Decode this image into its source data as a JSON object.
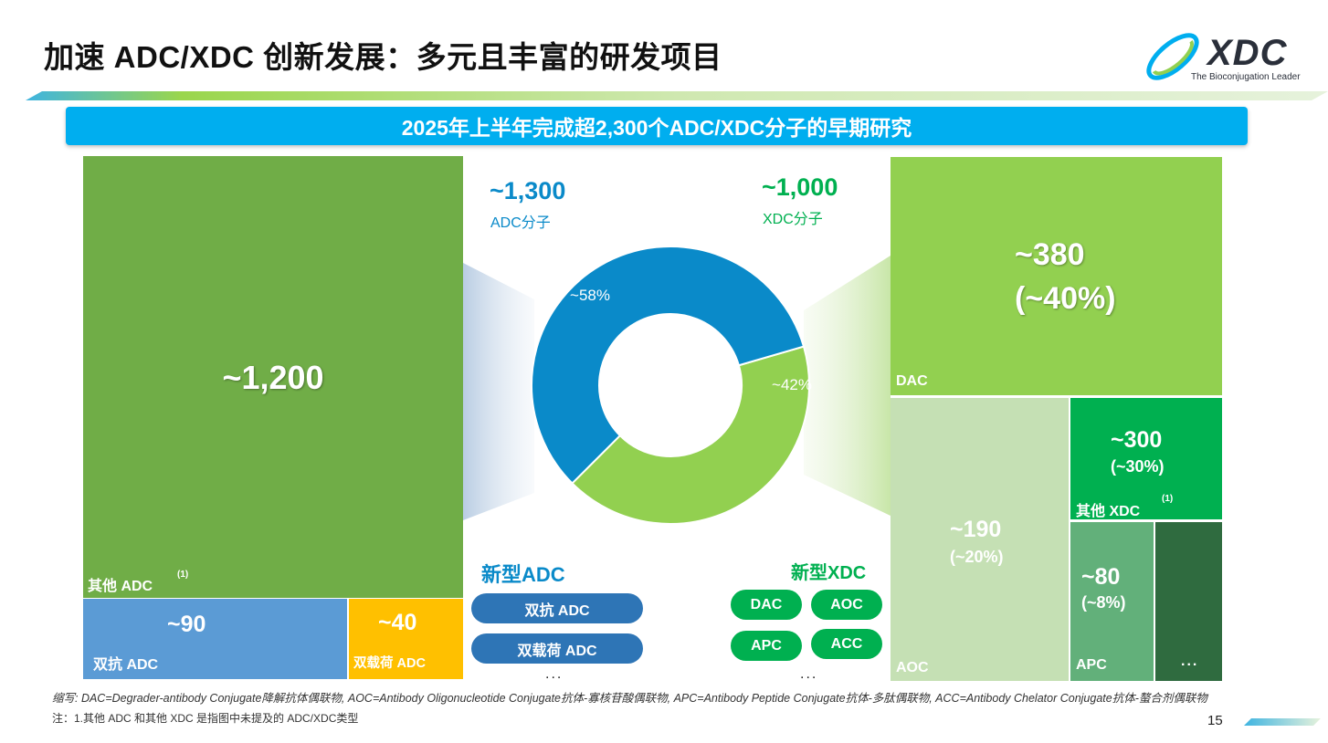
{
  "header": {
    "title": "加速 ADC/XDC 创新发展：多元且丰富的研发项目",
    "logo_text": "XDC",
    "logo_tagline": "The Bioconjugation Leader"
  },
  "banner": {
    "text": "2025年上半年完成超2,300个ADC/XDC分子的早期研究"
  },
  "adc_summary": {
    "value": "~1,300",
    "label": "ADC分子"
  },
  "xdc_summary": {
    "value": "~1,000",
    "label": "XDC分子"
  },
  "chart_data": {
    "type": "pie",
    "donut": true,
    "slices": [
      {
        "label": "~58%",
        "value": 58,
        "color": "#0a8ac9"
      },
      {
        "label": "~42%",
        "value": 42,
        "color": "#92d050"
      }
    ]
  },
  "adc_treemap": {
    "other": {
      "value": "~1,200",
      "label": "其他 ADC",
      "note": "(1)"
    },
    "bispecific": {
      "value": "~90",
      "label": "双抗 ADC"
    },
    "dual_payload": {
      "value": "~40",
      "label": "双载荷 ADC"
    }
  },
  "xdc_treemap": {
    "dac": {
      "value": "~380",
      "pct": "(~40%)",
      "label": "DAC"
    },
    "aoc": {
      "value": "~190",
      "pct": "(~20%)",
      "label": "AOC"
    },
    "other": {
      "value": "~300",
      "pct": "(~30%)",
      "label": "其他 XDC",
      "note": "(1)"
    },
    "apc": {
      "value": "~80",
      "pct": "(~8%)",
      "label": "APC"
    },
    "more": "..."
  },
  "new_adc": {
    "heading": "新型ADC",
    "items": [
      "双抗 ADC",
      "双载荷 ADC"
    ],
    "more": "..."
  },
  "new_xdc": {
    "heading": "新型XDC",
    "items": [
      "DAC",
      "AOC",
      "APC",
      "ACC"
    ],
    "more": "..."
  },
  "footer": {
    "abbrev": "缩写: DAC=Degrader-antibody Conjugate降解抗体偶联物, AOC=Antibody Oligonucleotide Conjugate抗体-寡核苷酸偶联物, APC=Antibody Peptide Conjugate抗体-多肽偶联物, ACC=Antibody Chelator Conjugate抗体-螯合剂偶联物",
    "note": "注：1.其他 ADC 和其他 XDC 是指图中未提及的 ADC/XDC类型",
    "page": "15"
  },
  "colors": {
    "banner": "#00aeef",
    "adc_blue": "#0a8ac9",
    "xdc_green": "#00b050",
    "other_adc": "#70ad47",
    "bispecific": "#5b9bd5",
    "dual_payload": "#ffc000",
    "dac": "#92d050",
    "aoc": "#c5e0b4",
    "other_xdc": "#00b050",
    "apc": "#62b07a",
    "more": "#2f6b3f",
    "pill_adc": "#2e75b6",
    "pill_xdc": "#00b050"
  }
}
